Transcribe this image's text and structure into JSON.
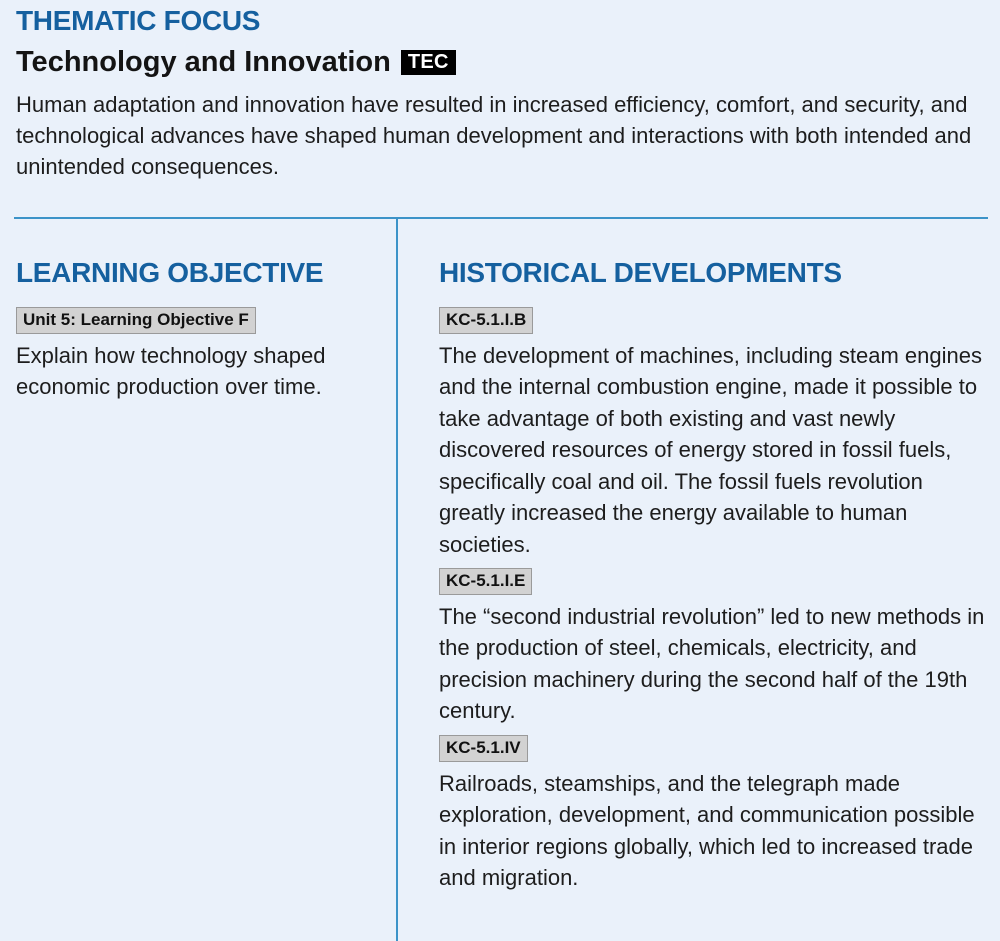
{
  "thematic_focus": {
    "title": "THEMATIC FOCUS",
    "subtitle": "Technology and Innovation",
    "tag": "TEC",
    "description": "Human adaptation and innovation have resulted in increased efficiency, comfort, and security, and technological advances have shaped human development and interactions with both intended and unintended consequences."
  },
  "learning_objective": {
    "title": "LEARNING OBJECTIVE",
    "label": "Unit 5: Learning Objective F",
    "text": "Explain how technology shaped economic production over time."
  },
  "historical_developments": {
    "title": "HISTORICAL DEVELOPMENTS",
    "items": [
      {
        "code": "KC-5.1.I.B",
        "text": "The development of machines, including steam engines and the internal combustion engine, made it possible to take advantage of both existing and vast newly discovered resources of energy stored in fossil fuels, specifically coal and oil. The fossil fuels revolution greatly increased the energy available to human societies."
      },
      {
        "code": "KC-5.1.I.E",
        "text": "The “second industrial revolution” led to new methods in the production of steel, chemicals, electricity, and precision machinery during the second half of the 19th century."
      },
      {
        "code": "KC-5.1.IV",
        "text": "Railroads, steamships, and the telegraph made exploration, development, and communication possible in interior regions globally, which led to increased trade and migration."
      }
    ]
  }
}
